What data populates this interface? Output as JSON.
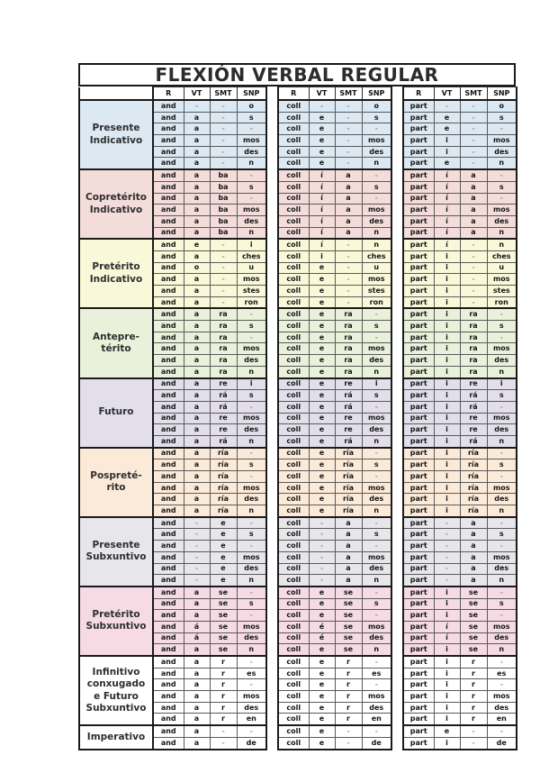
{
  "title": "FLEXIÓN VERBAL REGULAR",
  "column_headers": [
    "R",
    "VT",
    "SMT",
    "SNP"
  ],
  "verb_stems": [
    "and",
    "coll",
    "part"
  ],
  "tenses": [
    {
      "label": "Presente\nIndicativo",
      "bg": "#dce8f2",
      "rows": [
        [
          [
            "and",
            "-",
            "-",
            "o"
          ],
          [
            "coll",
            "-",
            "-",
            "o"
          ],
          [
            "part",
            "-",
            "-",
            "o"
          ]
        ],
        [
          [
            "and",
            "a",
            "-",
            "s"
          ],
          [
            "coll",
            "e",
            "-",
            "s"
          ],
          [
            "part",
            "e",
            "-",
            "s"
          ]
        ],
        [
          [
            "and",
            "a",
            "-",
            "-"
          ],
          [
            "coll",
            "e",
            "-",
            "-"
          ],
          [
            "part",
            "e",
            "-",
            "-"
          ]
        ],
        [
          [
            "and",
            "a",
            "-",
            "mos"
          ],
          [
            "coll",
            "e",
            "-",
            "mos"
          ],
          [
            "part",
            "i",
            "-",
            "mos"
          ]
        ],
        [
          [
            "and",
            "a",
            "-",
            "des"
          ],
          [
            "coll",
            "e",
            "-",
            "des"
          ],
          [
            "part",
            "i",
            "-",
            "des"
          ]
        ],
        [
          [
            "and",
            "a",
            "-",
            "n"
          ],
          [
            "coll",
            "e",
            "-",
            "n"
          ],
          [
            "part",
            "e",
            "-",
            "n"
          ]
        ]
      ]
    },
    {
      "label": "Copretérito\nIndicativo",
      "bg": "#f3dcda",
      "rows": [
        [
          [
            "and",
            "a",
            "ba",
            "-"
          ],
          [
            "coll",
            "í",
            "a",
            "-"
          ],
          [
            "part",
            "í",
            "a",
            "-"
          ]
        ],
        [
          [
            "and",
            "a",
            "ba",
            "s"
          ],
          [
            "coll",
            "í",
            "a",
            "s"
          ],
          [
            "part",
            "í",
            "a",
            "s"
          ]
        ],
        [
          [
            "and",
            "a",
            "ba",
            "-"
          ],
          [
            "coll",
            "í",
            "a",
            "-"
          ],
          [
            "part",
            "í",
            "a",
            "-"
          ]
        ],
        [
          [
            "and",
            "a",
            "ba",
            "mos"
          ],
          [
            "coll",
            "í",
            "a",
            "mos"
          ],
          [
            "part",
            "í",
            "a",
            "mos"
          ]
        ],
        [
          [
            "and",
            "a",
            "ba",
            "des"
          ],
          [
            "coll",
            "í",
            "a",
            "des"
          ],
          [
            "part",
            "í",
            "a",
            "des"
          ]
        ],
        [
          [
            "and",
            "a",
            "ba",
            "n"
          ],
          [
            "coll",
            "í",
            "a",
            "n"
          ],
          [
            "part",
            "í",
            "a",
            "n"
          ]
        ]
      ]
    },
    {
      "label": "Pretérito\nIndicativo",
      "bg": "#f9f9d9",
      "rows": [
        [
          [
            "and",
            "e",
            "-",
            "i"
          ],
          [
            "coll",
            "í",
            "-",
            "n"
          ],
          [
            "part",
            "í",
            "-",
            "n"
          ]
        ],
        [
          [
            "and",
            "a",
            "-",
            "ches"
          ],
          [
            "coll",
            "i",
            "-",
            "ches"
          ],
          [
            "part",
            "i",
            "-",
            "ches"
          ]
        ],
        [
          [
            "and",
            "o",
            "-",
            "u"
          ],
          [
            "coll",
            "e",
            "-",
            "u"
          ],
          [
            "part",
            "i",
            "-",
            "u"
          ]
        ],
        [
          [
            "and",
            "a",
            "-",
            "mos"
          ],
          [
            "coll",
            "e",
            "-",
            "mos"
          ],
          [
            "part",
            "i",
            "-",
            "mos"
          ]
        ],
        [
          [
            "and",
            "a",
            "-",
            "stes"
          ],
          [
            "coll",
            "e",
            "-",
            "stes"
          ],
          [
            "part",
            "i",
            "-",
            "stes"
          ]
        ],
        [
          [
            "and",
            "a",
            "-",
            "ron"
          ],
          [
            "coll",
            "e",
            "-",
            "ron"
          ],
          [
            "part",
            "i",
            "-",
            "ron"
          ]
        ]
      ]
    },
    {
      "label": "Antepre-\ntérito",
      "bg": "#e9f1da",
      "rows": [
        [
          [
            "and",
            "a",
            "ra",
            "-"
          ],
          [
            "coll",
            "e",
            "ra",
            "-"
          ],
          [
            "part",
            "i",
            "ra",
            "-"
          ]
        ],
        [
          [
            "and",
            "a",
            "ra",
            "s"
          ],
          [
            "coll",
            "e",
            "ra",
            "s"
          ],
          [
            "part",
            "i",
            "ra",
            "s"
          ]
        ],
        [
          [
            "and",
            "a",
            "ra",
            "-"
          ],
          [
            "coll",
            "e",
            "ra",
            "-"
          ],
          [
            "part",
            "i",
            "ra",
            "-"
          ]
        ],
        [
          [
            "and",
            "a",
            "ra",
            "mos"
          ],
          [
            "coll",
            "e",
            "ra",
            "mos"
          ],
          [
            "part",
            "i",
            "ra",
            "mos"
          ]
        ],
        [
          [
            "and",
            "a",
            "ra",
            "des"
          ],
          [
            "coll",
            "e",
            "ra",
            "des"
          ],
          [
            "part",
            "i",
            "ra",
            "des"
          ]
        ],
        [
          [
            "and",
            "a",
            "ra",
            "n"
          ],
          [
            "coll",
            "e",
            "ra",
            "n"
          ],
          [
            "part",
            "i",
            "ra",
            "n"
          ]
        ]
      ]
    },
    {
      "label": "Futuro",
      "bg": "#e2dfeb",
      "rows": [
        [
          [
            "and",
            "a",
            "re",
            "i"
          ],
          [
            "coll",
            "e",
            "re",
            "i"
          ],
          [
            "part",
            "i",
            "re",
            "i"
          ]
        ],
        [
          [
            "and",
            "a",
            "rá",
            "s"
          ],
          [
            "coll",
            "e",
            "rá",
            "s"
          ],
          [
            "part",
            "i",
            "rá",
            "s"
          ]
        ],
        [
          [
            "and",
            "a",
            "rá",
            "-"
          ],
          [
            "coll",
            "e",
            "rá",
            "-"
          ],
          [
            "part",
            "i",
            "rá",
            "-"
          ]
        ],
        [
          [
            "and",
            "a",
            "re",
            "mos"
          ],
          [
            "coll",
            "e",
            "re",
            "mos"
          ],
          [
            "part",
            "i",
            "re",
            "mos"
          ]
        ],
        [
          [
            "and",
            "a",
            "re",
            "des"
          ],
          [
            "coll",
            "e",
            "re",
            "des"
          ],
          [
            "part",
            "i",
            "re",
            "des"
          ]
        ],
        [
          [
            "and",
            "a",
            "rá",
            "n"
          ],
          [
            "coll",
            "e",
            "rá",
            "n"
          ],
          [
            "part",
            "i",
            "rá",
            "n"
          ]
        ]
      ]
    },
    {
      "label": "Pospreté-\nrito",
      "bg": "#fcead8",
      "rows": [
        [
          [
            "and",
            "a",
            "ría",
            "-"
          ],
          [
            "coll",
            "e",
            "ría",
            "-"
          ],
          [
            "part",
            "i",
            "ría",
            "-"
          ]
        ],
        [
          [
            "and",
            "a",
            "ría",
            "s"
          ],
          [
            "coll",
            "e",
            "ría",
            "s"
          ],
          [
            "part",
            "i",
            "ría",
            "s"
          ]
        ],
        [
          [
            "and",
            "a",
            "ría",
            "-"
          ],
          [
            "coll",
            "e",
            "ría",
            "-"
          ],
          [
            "part",
            "i",
            "ría",
            "-"
          ]
        ],
        [
          [
            "and",
            "a",
            "ría",
            "mos"
          ],
          [
            "coll",
            "e",
            "ría",
            "mos"
          ],
          [
            "part",
            "i",
            "ría",
            "mos"
          ]
        ],
        [
          [
            "and",
            "a",
            "ría",
            "des"
          ],
          [
            "coll",
            "e",
            "ría",
            "des"
          ],
          [
            "part",
            "i",
            "ría",
            "des"
          ]
        ],
        [
          [
            "and",
            "a",
            "ría",
            "n"
          ],
          [
            "coll",
            "e",
            "ría",
            "n"
          ],
          [
            "part",
            "i",
            "ría",
            "n"
          ]
        ]
      ]
    },
    {
      "label": "Presente\nSubxuntivo",
      "bg": "#e7e6ea",
      "rows": [
        [
          [
            "and",
            "-",
            "e",
            "-"
          ],
          [
            "coll",
            "-",
            "a",
            "-"
          ],
          [
            "part",
            "-",
            "a",
            "-"
          ]
        ],
        [
          [
            "and",
            "-",
            "e",
            "s"
          ],
          [
            "coll",
            "-",
            "a",
            "s"
          ],
          [
            "part",
            "-",
            "a",
            "s"
          ]
        ],
        [
          [
            "and",
            "-",
            "e",
            "-"
          ],
          [
            "coll",
            "-",
            "a",
            "-"
          ],
          [
            "part",
            "-",
            "a",
            "-"
          ]
        ],
        [
          [
            "and",
            "-",
            "e",
            "mos"
          ],
          [
            "coll",
            "-",
            "a",
            "mos"
          ],
          [
            "part",
            "-",
            "a",
            "mos"
          ]
        ],
        [
          [
            "and",
            "-",
            "e",
            "des"
          ],
          [
            "coll",
            "-",
            "a",
            "des"
          ],
          [
            "part",
            "-",
            "a",
            "des"
          ]
        ],
        [
          [
            "and",
            "-",
            "e",
            "n"
          ],
          [
            "coll",
            "-",
            "a",
            "n"
          ],
          [
            "part",
            "-",
            "a",
            "n"
          ]
        ]
      ]
    },
    {
      "label": "Pretérito\nSubxuntivo",
      "bg": "#f6dbe4",
      "rows": [
        [
          [
            "and",
            "a",
            "se",
            "-"
          ],
          [
            "coll",
            "e",
            "se",
            "-"
          ],
          [
            "part",
            "i",
            "se",
            "-"
          ]
        ],
        [
          [
            "and",
            "a",
            "se",
            "s"
          ],
          [
            "coll",
            "e",
            "se",
            "s"
          ],
          [
            "part",
            "i",
            "se",
            "s"
          ]
        ],
        [
          [
            "and",
            "a",
            "se",
            "-"
          ],
          [
            "coll",
            "e",
            "se",
            "-"
          ],
          [
            "part",
            "i",
            "se",
            "-"
          ]
        ],
        [
          [
            "and",
            "á",
            "se",
            "mos"
          ],
          [
            "coll",
            "é",
            "se",
            "mos"
          ],
          [
            "part",
            "í",
            "se",
            "mos"
          ]
        ],
        [
          [
            "and",
            "á",
            "se",
            "des"
          ],
          [
            "coll",
            "é",
            "se",
            "des"
          ],
          [
            "part",
            "í",
            "se",
            "des"
          ]
        ],
        [
          [
            "and",
            "a",
            "se",
            "n"
          ],
          [
            "coll",
            "e",
            "se",
            "n"
          ],
          [
            "part",
            "i",
            "se",
            "n"
          ]
        ]
      ]
    },
    {
      "label": "Infinitivo\nconxugado\ne Futuro\nSubxuntivo",
      "bg": "#ffffff",
      "rows": [
        [
          [
            "and",
            "a",
            "r",
            "-"
          ],
          [
            "coll",
            "e",
            "r",
            "-"
          ],
          [
            "part",
            "i",
            "r",
            "-"
          ]
        ],
        [
          [
            "and",
            "a",
            "r",
            "es"
          ],
          [
            "coll",
            "e",
            "r",
            "es"
          ],
          [
            "part",
            "i",
            "r",
            "es"
          ]
        ],
        [
          [
            "and",
            "a",
            "r",
            "-"
          ],
          [
            "coll",
            "e",
            "r",
            "-"
          ],
          [
            "part",
            "i",
            "r",
            "-"
          ]
        ],
        [
          [
            "and",
            "a",
            "r",
            "mos"
          ],
          [
            "coll",
            "e",
            "r",
            "mos"
          ],
          [
            "part",
            "i",
            "r",
            "mos"
          ]
        ],
        [
          [
            "and",
            "a",
            "r",
            "des"
          ],
          [
            "coll",
            "e",
            "r",
            "des"
          ],
          [
            "part",
            "i",
            "r",
            "des"
          ]
        ],
        [
          [
            "and",
            "a",
            "r",
            "en"
          ],
          [
            "coll",
            "e",
            "r",
            "en"
          ],
          [
            "part",
            "i",
            "r",
            "en"
          ]
        ]
      ]
    },
    {
      "label": "Imperativo",
      "bg": "#ffffff",
      "rows": [
        [
          [
            "and",
            "a",
            "-",
            "-"
          ],
          [
            "coll",
            "e",
            "-",
            "-"
          ],
          [
            "part",
            "e",
            "-",
            "-"
          ]
        ],
        [
          [
            "and",
            "a",
            "-",
            "de"
          ],
          [
            "coll",
            "e",
            "-",
            "de"
          ],
          [
            "part",
            "i",
            "-",
            "de"
          ]
        ]
      ]
    }
  ]
}
